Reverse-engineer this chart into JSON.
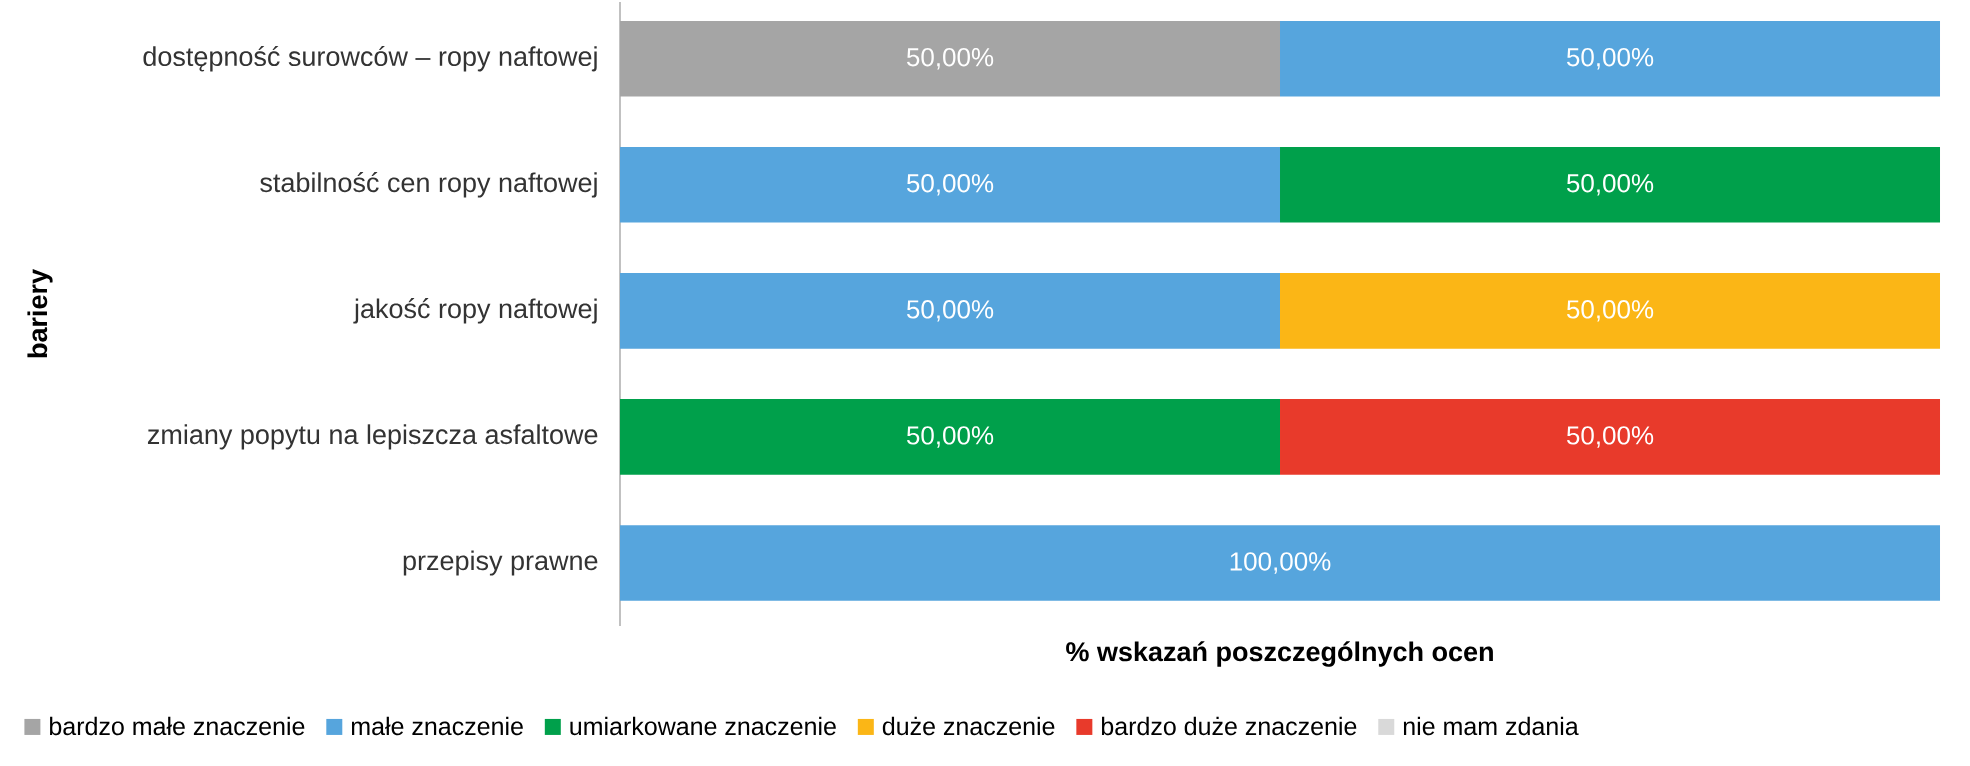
{
  "chart_data": {
    "type": "bar",
    "orientation": "horizontal",
    "stacked": true,
    "categories": [
      "dostępność surowców – ropy naftowej",
      "stabilność cen ropy naftowej",
      "jakość ropy naftowej",
      "zmiany popytu na lepiszcza asfaltowe",
      "przepisy prawne"
    ],
    "xlabel": "% wskazań poszczególnych ocen",
    "ylabel": "bariery",
    "legend": "bottom",
    "series": [
      {
        "name": "bardzo małe znaczenie",
        "color": "#a5a5a5",
        "values": [
          50,
          null,
          null,
          null,
          null
        ],
        "value_labels": [
          "50,00%",
          null,
          null,
          null,
          null
        ]
      },
      {
        "name": "małe znaczenie",
        "color": "#56a5dd",
        "values": [
          50,
          50,
          50,
          null,
          100
        ],
        "value_labels": [
          "50,00%",
          "50,00%",
          "50,00%",
          null,
          "100,00%"
        ]
      },
      {
        "name": "umiarkowane znaczenie",
        "color": "#00a04b",
        "values": [
          null,
          50,
          null,
          50,
          null
        ],
        "value_labels": [
          null,
          "50,00%",
          null,
          "50,00%",
          null
        ]
      },
      {
        "name": "duże znaczenie",
        "color": "#fbb616",
        "values": [
          null,
          null,
          50,
          null,
          null
        ],
        "value_labels": [
          null,
          null,
          "50,00%",
          null,
          null
        ]
      },
      {
        "name": "bardzo duże znaczenie",
        "color": "#e83a2b",
        "values": [
          null,
          null,
          null,
          50,
          null
        ],
        "value_labels": [
          null,
          null,
          null,
          "50,00%",
          null
        ]
      },
      {
        "name": "nie mam zdania",
        "color": "#d9d9d9",
        "values": [
          null,
          null,
          null,
          null,
          null
        ],
        "value_labels": [
          null,
          null,
          null,
          null,
          null
        ]
      }
    ]
  }
}
